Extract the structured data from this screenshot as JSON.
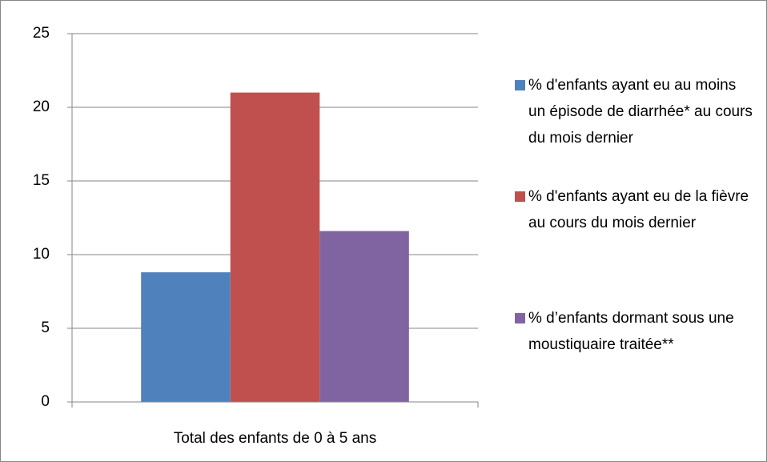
{
  "chart_data": {
    "type": "bar",
    "categories": [
      "Total des enfants de 0 à 5 ans"
    ],
    "series": [
      {
        "name": "% d'enfants ayant eu au moins un épisode de diarrhée* au cours du mois dernier",
        "color": "#4f81bd",
        "values": [
          8.8
        ]
      },
      {
        "name": "% d'enfants ayant eu de la fièvre au cours du mois dernier",
        "color": "#c0504d",
        "values": [
          21
        ]
      },
      {
        "name": "% d’enfants dormant sous une moustiquaire traitée**",
        "color": "#8064a2",
        "values": [
          11.6
        ]
      }
    ],
    "ylim": [
      0,
      25
    ],
    "yticks": [
      0,
      5,
      10,
      15,
      20,
      25
    ],
    "grid": true,
    "legend": "right"
  }
}
